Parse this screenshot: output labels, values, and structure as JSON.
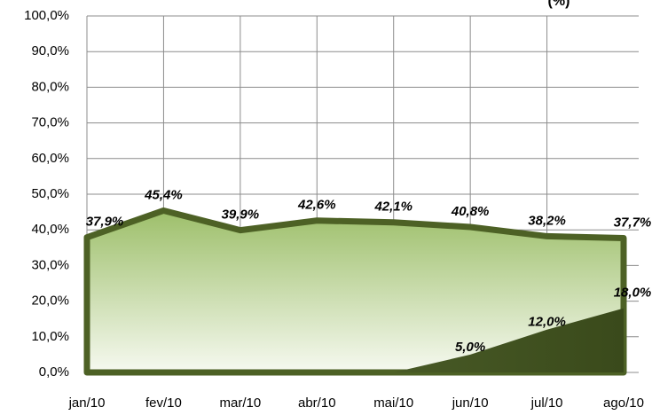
{
  "chart_data": {
    "type": "area",
    "title": "(%)",
    "categories": [
      "jan/10",
      "fev/10",
      "mar/10",
      "abr/10",
      "mai/10",
      "jun/10",
      "jul/10",
      "ago/10"
    ],
    "series": [
      {
        "color": "#4d6125",
        "values": [
          37.9,
          45.4,
          39.9,
          42.6,
          42.1,
          40.8,
          38.2,
          37.7
        ],
        "value_labels": [
          "37,9%",
          "45,4%",
          "39,9%",
          "42,6%",
          "42,1%",
          "40,8%",
          "38,2%",
          "37,7%"
        ]
      },
      {
        "color": "#3d4d1e",
        "values": [
          0,
          0,
          0,
          0,
          0,
          5,
          12,
          18
        ],
        "value_labels": [
          null,
          null,
          null,
          null,
          null,
          "5,0%",
          "12,0%",
          "18,0%"
        ]
      }
    ],
    "ylim": [
      0,
      100
    ],
    "yticks": [
      {
        "value": 0,
        "label": "0,0%"
      },
      {
        "value": 10,
        "label": "10,0%"
      },
      {
        "value": 20,
        "label": "20,0%"
      },
      {
        "value": 30,
        "label": "30,0%"
      },
      {
        "value": 40,
        "label": "40,0%"
      },
      {
        "value": 50,
        "label": "50,0%"
      },
      {
        "value": 60,
        "label": "60,0%"
      },
      {
        "value": 70,
        "label": "70,0%"
      },
      {
        "value": 80,
        "label": "80,0%"
      },
      {
        "value": 90,
        "label": "90,0%"
      },
      {
        "value": 100,
        "label": "100,0%"
      }
    ],
    "grid": true
  }
}
